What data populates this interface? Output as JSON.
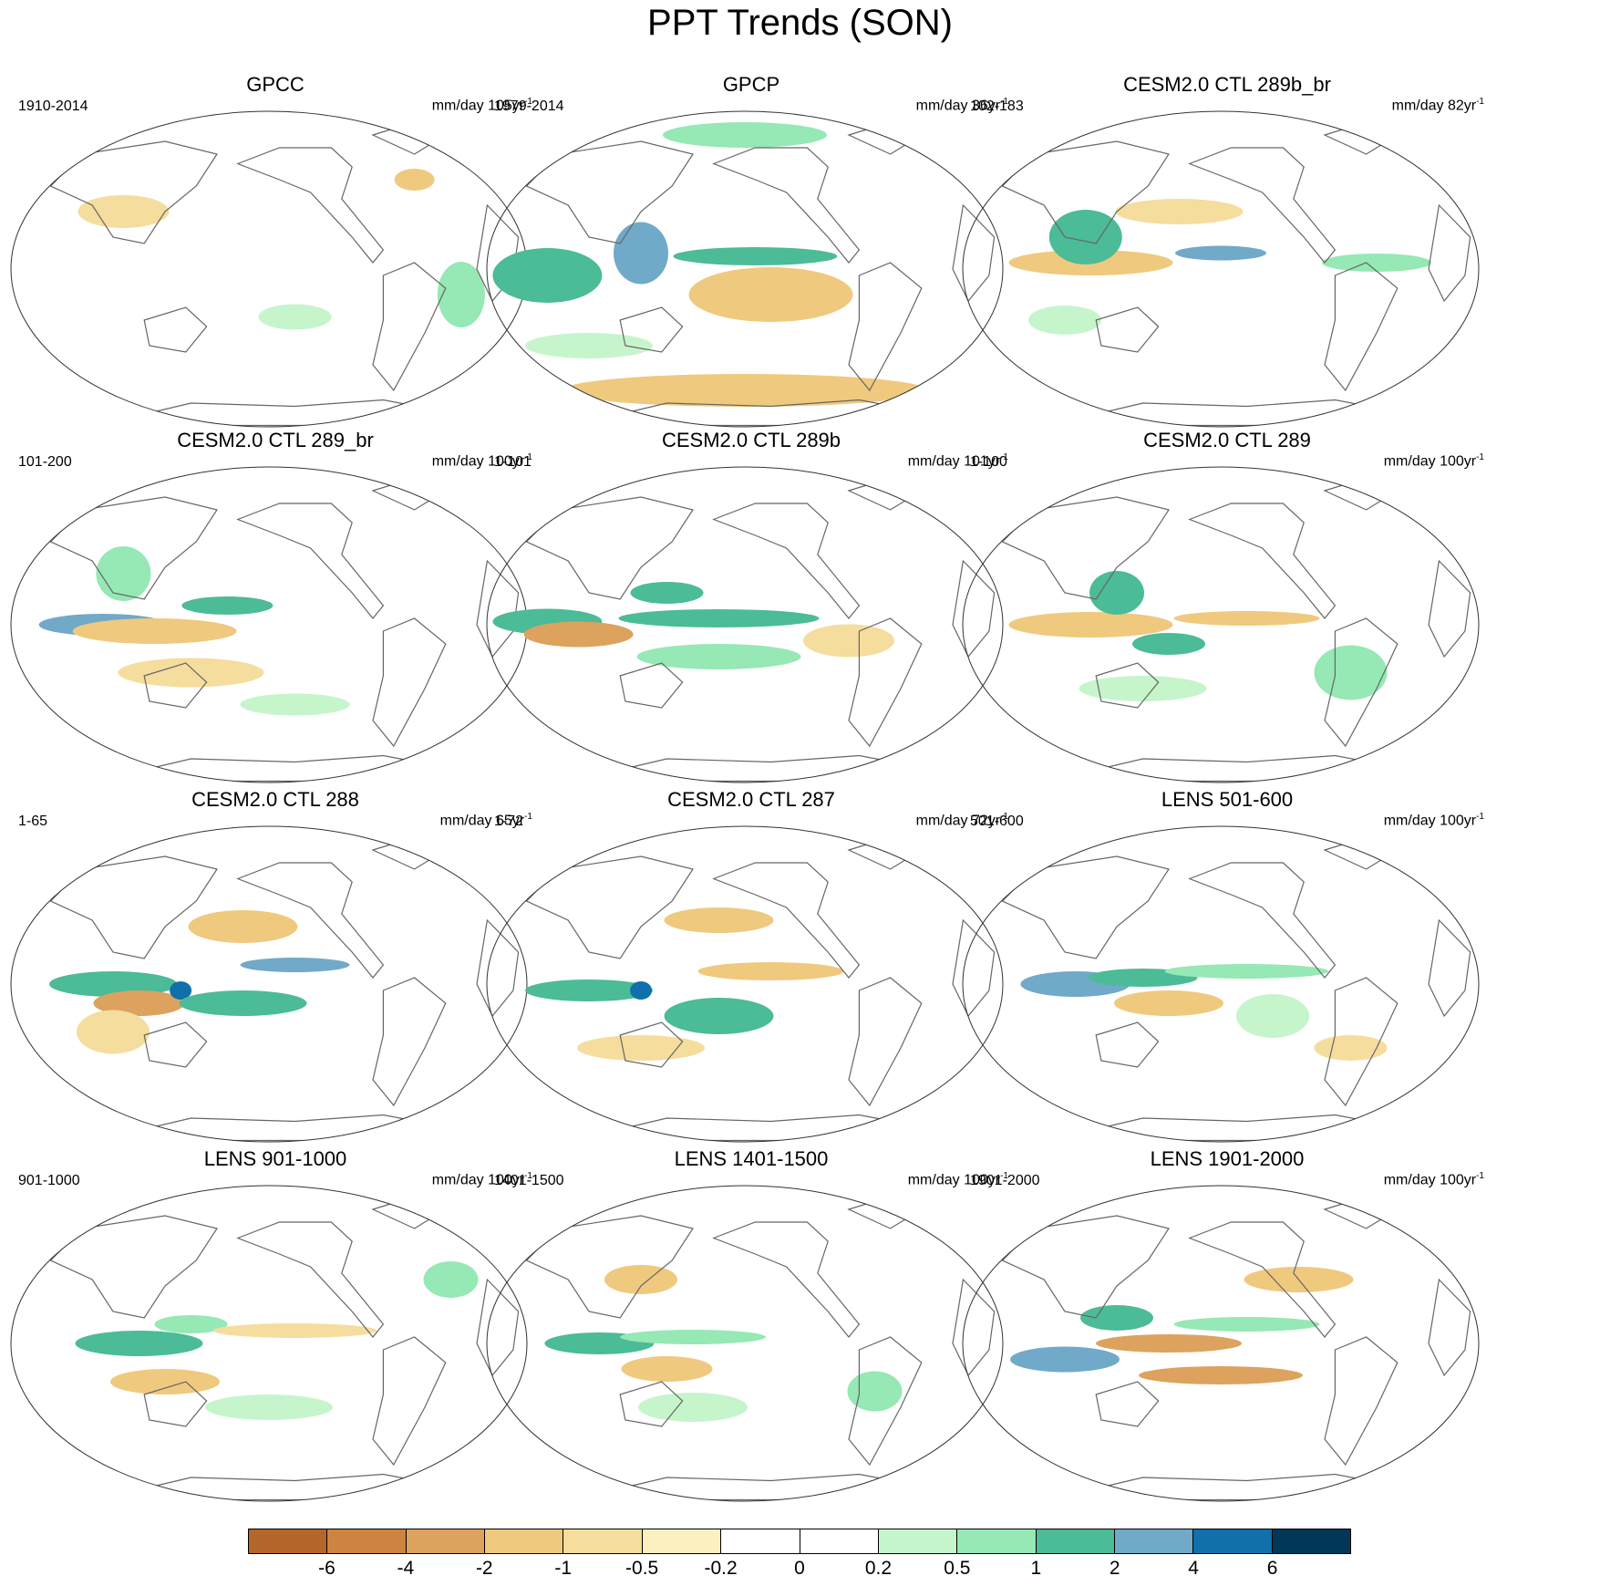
{
  "title": "PPT Trends (SON)",
  "panels": [
    {
      "title": "GPCC",
      "period": "1910-2014",
      "units": "mm/day 105yr",
      "units_sup": "-1"
    },
    {
      "title": "GPCP",
      "period": "1979-2014",
      "units": "mm/day 36yr",
      "units_sup": "-1"
    },
    {
      "title": "CESM2.0 CTL 289b_br",
      "period": "102-183",
      "units": "mm/day 82yr",
      "units_sup": "-1"
    },
    {
      "title": "CESM2.0 CTL 289_br",
      "period": "101-200",
      "units": "mm/day 100yr",
      "units_sup": "-1"
    },
    {
      "title": "CESM2.0 CTL 289b",
      "period": "1-101",
      "units": "mm/day 101yr",
      "units_sup": "-1"
    },
    {
      "title": "CESM2.0 CTL 289",
      "period": "1-100",
      "units": "mm/day 100yr",
      "units_sup": "-1"
    },
    {
      "title": "CESM2.0 CTL 288",
      "period": "1-65",
      "units": "mm/day 65yr",
      "units_sup": "-1"
    },
    {
      "title": "CESM2.0 CTL 287",
      "period": "1-72",
      "units": "mm/day 72yr",
      "units_sup": "-1"
    },
    {
      "title": "LENS 501-600",
      "period": "501-600",
      "units": "mm/day 100yr",
      "units_sup": "-1"
    },
    {
      "title": "LENS 901-1000",
      "period": "901-1000",
      "units": "mm/day 100yr",
      "units_sup": "-1"
    },
    {
      "title": "LENS 1401-1500",
      "period": "1401-1500",
      "units": "mm/day 100yr",
      "units_sup": "-1"
    },
    {
      "title": "LENS 1901-2000",
      "period": "1901-2000",
      "units": "mm/day 100yr",
      "units_sup": "-1"
    }
  ],
  "colorbar": {
    "labels": [
      "-6",
      "-4",
      "-2",
      "-1",
      "-0.5",
      "-0.2",
      "0",
      "0.2",
      "0.5",
      "1",
      "2",
      "4",
      "6"
    ],
    "colors": [
      "#b5662a",
      "#cc8440",
      "#dda25e",
      "#efc97e",
      "#f5dd9d",
      "#fbf0c0",
      "#ffffff",
      "#ffffff",
      "#c6f5cc",
      "#96e8b4",
      "#4cbb97",
      "#71a9c9",
      "#116fab",
      "#01385a"
    ]
  }
}
